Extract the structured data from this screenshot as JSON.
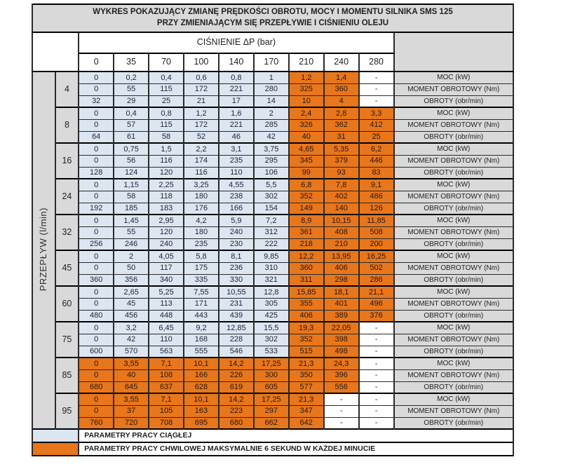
{
  "title": {
    "line1": "WYKRES POKAZUJĄCY ZMIANĘ PRĘDKOŚCI OBROTU, MOCY I MOMENTU SILNIKA SMS 125",
    "line2": "PRZY ZMIENIAJĄCYM SIĘ PRZEPŁYWIE I CIŚNIENIU OLEJU"
  },
  "pressure_axis_title": "CIŚNIENIE ΔP (bar)",
  "pressures": [
    "0",
    "35",
    "70",
    "100",
    "140",
    "170",
    "210",
    "240",
    "280"
  ],
  "flow_axis_label": "PRZEPŁYW (l/min)",
  "row_labels": [
    "MOC (kW)",
    "MOMENT OBROTOWY (Nm)",
    "OBROTY (obr/min)"
  ],
  "colors": {
    "continuous": "#dce6f1",
    "momentary": "#e8761a",
    "header_gray": "#d9d9d9",
    "border": "#000000"
  },
  "legend": {
    "continuous": "PARAMETRY PRACY CIĄGŁEJ",
    "momentary": "PARAMETRY PRACY CHWILOWEJ MAKSYMALNIE 6 SEKUND W KAŻDEJ MINUCIE"
  },
  "groups": [
    {
      "flow": "4",
      "styles": [
        "c",
        "c",
        "c",
        "c",
        "c",
        "c",
        "m",
        "m",
        "n"
      ],
      "moc": [
        "0",
        "0,2",
        "0,4",
        "0,6",
        "0,8",
        "1",
        "1,2",
        "1,4",
        "-"
      ],
      "moment": [
        "0",
        "55",
        "115",
        "172",
        "221",
        "280",
        "325",
        "360",
        "-"
      ],
      "obroty": [
        "32",
        "29",
        "25",
        "21",
        "17",
        "14",
        "10",
        "4",
        "-"
      ]
    },
    {
      "flow": "8",
      "styles": [
        "c",
        "c",
        "c",
        "c",
        "c",
        "c",
        "m",
        "m",
        "m"
      ],
      "moc": [
        "0",
        "0,4",
        "0,8",
        "1,2",
        "1,6",
        "2",
        "2,4",
        "2,8",
        "3,3"
      ],
      "moment": [
        "0",
        "57",
        "115",
        "172",
        "221",
        "285",
        "326",
        "362",
        "412"
      ],
      "obroty": [
        "64",
        "61",
        "58",
        "52",
        "46",
        "42",
        "40",
        "31",
        "25"
      ]
    },
    {
      "flow": "16",
      "styles": [
        "c",
        "c",
        "c",
        "c",
        "c",
        "c",
        "m",
        "m",
        "m"
      ],
      "moc": [
        "0",
        "0,75",
        "1,5",
        "2,2",
        "3,1",
        "3,75",
        "4,65",
        "5,35",
        "6,2"
      ],
      "moment": [
        "0",
        "56",
        "116",
        "174",
        "235",
        "295",
        "345",
        "379",
        "446"
      ],
      "obroty": [
        "128",
        "124",
        "120",
        "116",
        "110",
        "106",
        "99",
        "93",
        "83"
      ]
    },
    {
      "flow": "24",
      "styles": [
        "c",
        "c",
        "c",
        "c",
        "c",
        "c",
        "m",
        "m",
        "m"
      ],
      "moc": [
        "0",
        "1,15",
        "2,25",
        "3,25",
        "4,55",
        "5,5",
        "6,8",
        "7,8",
        "9,1"
      ],
      "moment": [
        "0",
        "58",
        "118",
        "180",
        "238",
        "302",
        "352",
        "402",
        "486"
      ],
      "obroty": [
        "192",
        "185",
        "183",
        "176",
        "166",
        "154",
        "149",
        "140",
        "126"
      ]
    },
    {
      "flow": "32",
      "styles": [
        "c",
        "c",
        "c",
        "c",
        "c",
        "c",
        "m",
        "m",
        "m"
      ],
      "moc": [
        "0",
        "1,45",
        "2,95",
        "4,2",
        "5,9",
        "7,2",
        "8,9",
        "10,15",
        "11,85"
      ],
      "moment": [
        "0",
        "55",
        "120",
        "180",
        "240",
        "312",
        "361",
        "408",
        "508"
      ],
      "obroty": [
        "256",
        "246",
        "240",
        "235",
        "230",
        "222",
        "218",
        "210",
        "200"
      ]
    },
    {
      "flow": "45",
      "styles": [
        "c",
        "c",
        "c",
        "c",
        "c",
        "c",
        "m",
        "m",
        "m"
      ],
      "moc": [
        "0",
        "2",
        "4,05",
        "5,8",
        "8,1",
        "9,85",
        "12,2",
        "13,95",
        "16,25"
      ],
      "moment": [
        "0",
        "50",
        "117",
        "175",
        "236",
        "310",
        "360",
        "406",
        "502"
      ],
      "obroty": [
        "360",
        "356",
        "340",
        "335",
        "330",
        "321",
        "311",
        "298",
        "286"
      ]
    },
    {
      "flow": "60",
      "styles": [
        "c",
        "c",
        "c",
        "c",
        "c",
        "c",
        "m",
        "m",
        "m"
      ],
      "moc": [
        "0",
        "2,65",
        "5,25",
        "7,55",
        "10,55",
        "12,8",
        "15,85",
        "18,1",
        "21,1"
      ],
      "moment": [
        "0",
        "45",
        "113",
        "171",
        "231",
        "305",
        "355",
        "401",
        "496"
      ],
      "obroty": [
        "480",
        "456",
        "448",
        "443",
        "439",
        "425",
        "406",
        "389",
        "376"
      ]
    },
    {
      "flow": "75",
      "styles": [
        "c",
        "c",
        "c",
        "c",
        "c",
        "c",
        "m",
        "m",
        "n"
      ],
      "moc": [
        "0",
        "3,2",
        "6,45",
        "9,2",
        "12,85",
        "15,5",
        "19,3",
        "22,05",
        "-"
      ],
      "moment": [
        "0",
        "42",
        "110",
        "168",
        "228",
        "302",
        "352",
        "398",
        "-"
      ],
      "obroty": [
        "600",
        "570",
        "563",
        "555",
        "546",
        "533",
        "515",
        "498",
        "-"
      ]
    },
    {
      "flow": "85",
      "styles": [
        "m",
        "m",
        "m",
        "m",
        "m",
        "m",
        "m",
        "m",
        "n"
      ],
      "moc": [
        "0",
        "3,55",
        "7,1",
        "10,1",
        "14,2",
        "17,25",
        "21,3",
        "24,3",
        "-"
      ],
      "moment": [
        "0",
        "40",
        "108",
        "166",
        "226",
        "300",
        "350",
        "396",
        "-"
      ],
      "obroty": [
        "680",
        "645",
        "637",
        "628",
        "619",
        "605",
        "577",
        "556",
        "-"
      ]
    },
    {
      "flow": "95",
      "styles": [
        "m",
        "m",
        "m",
        "m",
        "m",
        "m",
        "m",
        "n",
        "n"
      ],
      "moc": [
        "0",
        "3,55",
        "7,1",
        "10,1",
        "14,2",
        "17,25",
        "21,3",
        "-",
        "-"
      ],
      "moment": [
        "0",
        "37",
        "105",
        "163",
        "223",
        "297",
        "347",
        "-",
        "-"
      ],
      "obroty": [
        "760",
        "720",
        "708",
        "695",
        "680",
        "662",
        "642",
        "-",
        "-"
      ]
    }
  ]
}
